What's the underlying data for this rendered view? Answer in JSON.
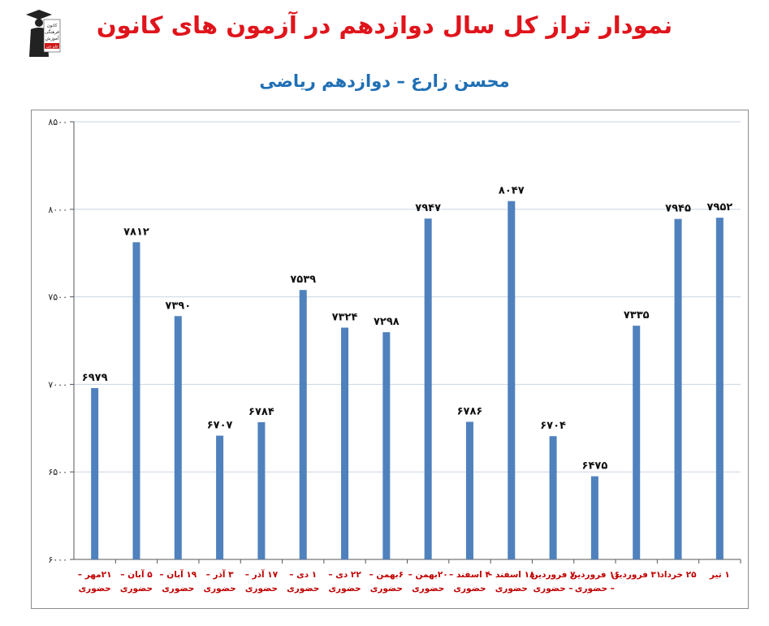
{
  "header": {
    "title": "نمودار تراز کل سال دوازدهم در آزمون های کانون",
    "subtitle": "محسن زارع – دوازدهم ریاضی"
  },
  "logo": {
    "icon": "graduate-logo-icon",
    "text_lines": [
      "کانون",
      "فرهنگی",
      "آموزش"
    ],
    "badge": "قلم چی"
  },
  "colors": {
    "title": "#e0141b",
    "subtitle": "#1f6fb4",
    "bar": "#4f81bd",
    "category_label": "#c00000",
    "grid": "#c9d5e3"
  },
  "chart_data": {
    "type": "bar",
    "title": "",
    "xlabel": "",
    "ylabel": "",
    "ylim": [
      6000,
      8500
    ],
    "yticks": [
      6000,
      6500,
      7000,
      7500,
      8000,
      8500
    ],
    "ytick_labels": [
      "۶۰۰۰",
      "۶۵۰۰",
      "۷۰۰۰",
      "۷۵۰۰",
      "۸۰۰۰",
      "۸۵۰۰"
    ],
    "grid": true,
    "legend": "none",
    "categories": [
      [
        "۲۱مهر –",
        "حضوری"
      ],
      [
        "۵ آبان –",
        "حضوری"
      ],
      [
        "۱۹ آبان –",
        "حضوری"
      ],
      [
        "۳ آذر –",
        "حضوری"
      ],
      [
        "۱۷ آذر –",
        "حضوری"
      ],
      [
        "۱ دی –",
        "حضوری"
      ],
      [
        "۲۲ دی –",
        "حضوری"
      ],
      [
        "۶بهمن –",
        "حضوری"
      ],
      [
        "۲۰بهمن –",
        "حضوری"
      ],
      [
        "۴ اسفند –",
        "حضوری"
      ],
      [
        "۱۸ اسفند –",
        "حضوری"
      ],
      [
        "۷ فروردین",
        "– حضوری"
      ],
      [
        "۱۶ فروردین",
        "– حضوری"
      ],
      [
        "۳۱ فروردین"
      ],
      [
        "۲۵ خرداد"
      ],
      [
        "۱ تیر"
      ]
    ],
    "values": [
      6979,
      7812,
      7390,
      6707,
      6784,
      7539,
      7324,
      7298,
      7947,
      6786,
      8047,
      6704,
      6475,
      7335,
      7945,
      7952
    ],
    "value_labels": [
      "۶۹۷۹",
      "۷۸۱۲",
      "۷۳۹۰",
      "۶۷۰۷",
      "۶۷۸۴",
      "۷۵۳۹",
      "۷۳۲۴",
      "۷۲۹۸",
      "۷۹۴۷",
      "۶۷۸۶",
      "۸۰۴۷",
      "۶۷۰۴",
      "۶۴۷۵",
      "۷۳۳۵",
      "۷۹۴۵",
      "۷۹۵۲"
    ]
  }
}
